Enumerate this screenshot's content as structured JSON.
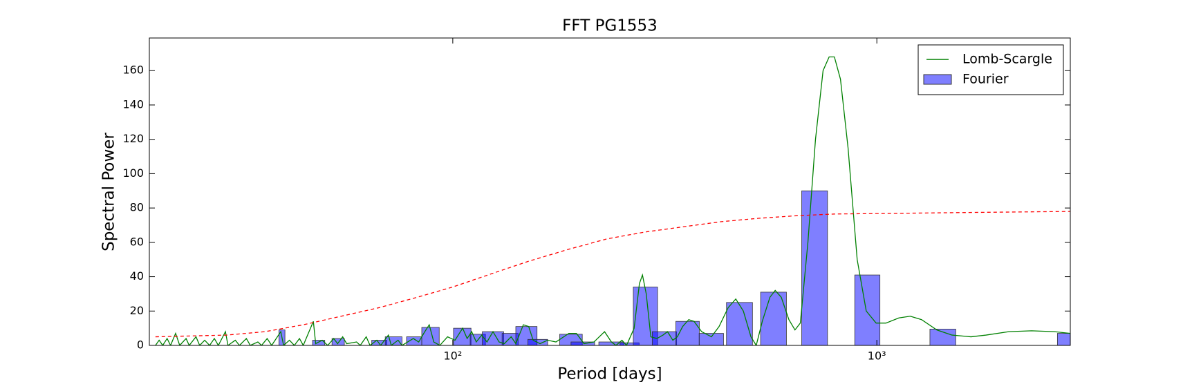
{
  "chart_data": {
    "type": "combo",
    "title": "FFT PG1553",
    "xlabel": "Period [days]",
    "ylabel": "Spectral Power",
    "xscale": "log",
    "xlim": [
      19.25,
      2859
    ],
    "xticks": [
      {
        "value": 100,
        "label": "10²"
      },
      {
        "value": 1000,
        "label": "10³"
      }
    ],
    "ylim": [
      0,
      179
    ],
    "yticks": [
      0,
      20,
      40,
      60,
      80,
      100,
      120,
      140,
      160
    ],
    "legend": "upper right",
    "series": [
      {
        "name": "Lomb-Scargle",
        "type": "line",
        "color": "#008000",
        "x": [
          19.9,
          20.3,
          20.7,
          21.2,
          21.6,
          22.2,
          22.7,
          23.5,
          23.9,
          24.8,
          25.3,
          26.0,
          26.7,
          27.4,
          28.0,
          29.1,
          29.5,
          30.7,
          31.4,
          32.6,
          33.3,
          34.7,
          35.4,
          36.5,
          37.4,
          39.3,
          39.9,
          41.2,
          42.3,
          43.5,
          44.4,
          46.9,
          47.5,
          49.2,
          50.7,
          52.4,
          53.5,
          55.0,
          56.2,
          59.3,
          60.5,
          62.5,
          63.8,
          66.2,
          67.6,
          70.5,
          71.6,
          74.3,
          75.9,
          80.7,
          83.1,
          85.9,
          88.0,
          90.2,
          93.2,
          97.2,
          101.2,
          105.5,
          108.1,
          110.8,
          113.6,
          117.0,
          120.4,
          124.4,
          128.6,
          132.3,
          137.3,
          140.8,
          146.7,
          151.0,
          154.7,
          160.6,
          167.3,
          175.1,
          187.8,
          195.7,
          203.9,
          215.2,
          228.0,
          236.6,
          242.5,
          250.6,
          256.9,
          267.7,
          275.5,
          280.1,
          285.9,
          293.1,
          302.9,
          313.1,
          320.9,
          330.3,
          338.5,
          348.4,
          360.1,
          370.6,
          386.2,
          407.4,
          424.6,
          446.1,
          464.9,
          484.4,
          504.8,
          519.5,
          536.9,
          559.5,
          575.9,
          595.2,
          620.3,
          641.1,
          660.0,
          687.8,
          716.7,
          746.8,
          771.8,
          794.1,
          820.8,
          855.3,
          898.7,
          944.1,
          996.1,
          1050.8,
          1127,
          1199,
          1275,
          1385,
          1504,
          1667,
          1810,
          2048,
          2317,
          2621,
          2859
        ],
        "values": [
          0,
          3,
          0,
          4,
          0,
          7,
          0,
          4,
          0,
          5,
          0,
          3,
          0,
          4,
          0,
          8,
          0,
          3,
          0,
          4,
          0,
          2,
          0,
          4,
          0,
          8,
          0,
          3,
          0,
          4,
          0,
          14,
          1,
          3,
          0,
          4,
          1,
          5,
          1,
          2,
          0,
          5,
          0,
          3,
          0,
          6,
          0,
          3,
          0,
          4,
          2,
          8,
          12,
          2,
          0,
          5,
          3,
          10,
          4,
          8,
          2,
          6,
          2,
          8,
          2,
          1,
          5,
          1,
          12,
          11,
          3,
          1,
          3,
          2,
          7,
          7,
          1,
          2,
          8,
          2,
          0,
          3,
          0,
          10,
          36,
          41,
          30,
          5,
          4,
          6,
          8,
          3,
          5,
          11,
          15,
          14,
          8,
          5,
          11,
          22,
          27,
          20,
          5,
          0,
          14,
          28,
          32,
          28,
          15,
          9,
          13,
          60,
          120,
          160,
          168,
          168,
          155,
          115,
          50,
          20,
          13,
          13,
          16,
          17,
          15,
          9,
          6,
          5,
          6,
          8,
          8.5,
          8,
          7
        ]
      },
      {
        "name": "Fourier",
        "type": "bar",
        "color": "#0000ff",
        "alpha": 0.5,
        "x_left": [
          38.9,
          46.7,
          51.9,
          64.4,
          69.3,
          77.8,
          84.5,
          100.4,
          109.9,
          117.4,
          130.7,
          140.8,
          150.3,
          178.7,
          190,
          221,
          248,
          266.5,
          295.4,
          335.7,
          381,
          442,
          532,
          665,
          887,
          1334,
          2666
        ],
        "x_right": [
          40.2,
          49.9,
          55.5,
          69.9,
          75.9,
          84.5,
          92.9,
          110.4,
          119.4,
          131.8,
          142.6,
          158,
          167.4,
          202,
          216,
          253,
          275,
          304,
          337,
          381.4,
          435,
          509,
          612,
          765,
          1017,
          1535,
          3090
        ],
        "values": [
          9,
          3,
          4,
          3,
          5,
          5,
          10.5,
          10,
          6.5,
          8,
          7,
          11,
          3.5,
          6.5,
          2,
          2,
          1.5,
          34,
          8,
          14,
          7,
          25,
          31,
          90,
          41,
          9.5,
          7
        ]
      },
      {
        "type": "line",
        "style": "dashed",
        "color": "#ff0000",
        "x": [
          19.9,
          29.3,
          36.1,
          44.4,
          54.6,
          67.1,
          82.4,
          100,
          124.4,
          151,
          187.8,
          230.8,
          283.6,
          348.4,
          428,
          526,
          646,
          794,
          1199,
          1810,
          2859
        ],
        "values": [
          5,
          6,
          8,
          12,
          17,
          22,
          28,
          34,
          42,
          49,
          56,
          62,
          66,
          69,
          72,
          74,
          75.5,
          76.5,
          77,
          77.5,
          78
        ]
      }
    ]
  }
}
